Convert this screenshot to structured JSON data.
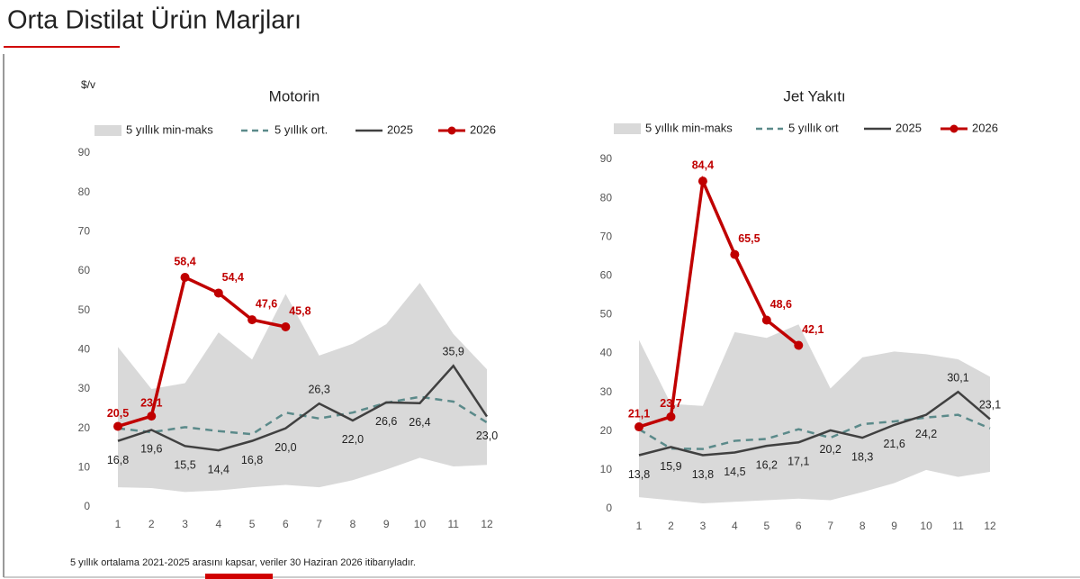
{
  "title": "Orta Distilat Ürün Marjları",
  "unit": "$/v",
  "footnote": "5 yıllık ortalama 2021-2025 arasını kapsar, veriler 30 Haziran 2026 itibarıyladır.",
  "chart_data": [
    {
      "type": "line",
      "title": "Motorin",
      "categories": [
        "1",
        "2",
        "3",
        "4",
        "5",
        "6",
        "7",
        "8",
        "9",
        "10",
        "11",
        "12"
      ],
      "ylim": [
        0,
        90
      ],
      "yticks": [
        0,
        10,
        20,
        30,
        40,
        50,
        60,
        70,
        80,
        90
      ],
      "grid": false,
      "series": [
        {
          "name": "5 yıllık min-maks",
          "kind": "band",
          "color": "#d9d9d9",
          "lower": [
            5,
            4.8,
            3.8,
            4.2,
            5,
            5.6,
            5,
            6.8,
            9.5,
            12.5,
            10.3,
            10.7
          ],
          "upper": [
            40.7,
            30,
            31.5,
            44.4,
            37.5,
            54.2,
            38.5,
            41.5,
            46.5,
            57,
            44,
            35
          ]
        },
        {
          "name": "5 yıllık ort.",
          "kind": "dashed",
          "color": "#5b8a8a",
          "values": [
            20,
            19,
            20.3,
            19.3,
            18.5,
            24,
            22.5,
            24,
            26.5,
            28,
            26.8,
            21.5
          ]
        },
        {
          "name": "2025",
          "kind": "line",
          "color": "#404040",
          "values": [
            16.8,
            19.6,
            15.5,
            14.4,
            16.8,
            20.0,
            26.3,
            22.0,
            26.6,
            26.4,
            35.9,
            23.0
          ],
          "value_labels": [
            "16,8",
            "19,6",
            "15,5",
            "14,4",
            "16,8",
            "20,0",
            "26,3",
            "22,0",
            "26,6",
            "26,4",
            "35,9",
            "23,0"
          ]
        },
        {
          "name": "2026",
          "kind": "marker",
          "color": "#c00000",
          "values": [
            20.5,
            23.1,
            58.4,
            54.4,
            47.6,
            45.8,
            null,
            null,
            null,
            null,
            null,
            null
          ],
          "value_labels": [
            "20,5",
            "23,1",
            "58,4",
            "54,4",
            "47,6",
            "45,8",
            null,
            null,
            null,
            null,
            null,
            null
          ]
        }
      ]
    },
    {
      "type": "line",
      "title": "Jet Yakıtı",
      "categories": [
        "1",
        "2",
        "3",
        "4",
        "5",
        "6",
        "7",
        "8",
        "9",
        "10",
        "11",
        "12"
      ],
      "ylim": [
        0,
        90
      ],
      "yticks": [
        0,
        10,
        20,
        30,
        40,
        50,
        60,
        70,
        80,
        90
      ],
      "grid": false,
      "series": [
        {
          "name": "5 yıllık min-maks",
          "kind": "band",
          "color": "#d9d9d9",
          "lower": [
            3,
            2.2,
            1.4,
            1.8,
            2.2,
            2.6,
            2.2,
            4.3,
            6.6,
            10,
            8.2,
            9.5
          ],
          "upper": [
            43.5,
            27,
            26.5,
            45.5,
            44,
            47.5,
            31,
            39,
            40.5,
            39.8,
            38.5,
            34
          ]
        },
        {
          "name": "5 yıllık ort",
          "kind": "dashed",
          "color": "#5b8a8a",
          "values": [
            20.5,
            15.5,
            15.4,
            17.5,
            18,
            20.5,
            18.3,
            21.8,
            22.5,
            23.5,
            24.2,
            20.7
          ]
        },
        {
          "name": "2025",
          "kind": "line",
          "color": "#404040",
          "values": [
            13.8,
            15.9,
            13.8,
            14.5,
            16.2,
            17.1,
            20.2,
            18.3,
            21.6,
            24.2,
            30.1,
            23.1
          ],
          "value_labels": [
            "13,8",
            "15,9",
            "13,8",
            "14,5",
            "16,2",
            "17,1",
            "20,2",
            "18,3",
            "21,6",
            "24,2",
            "30,1",
            "23,1"
          ]
        },
        {
          "name": "2026",
          "kind": "marker",
          "color": "#c00000",
          "values": [
            21.1,
            23.7,
            84.4,
            65.5,
            48.6,
            42.1,
            null,
            null,
            null,
            null,
            null,
            null
          ],
          "value_labels": [
            "21,1",
            "23,7",
            "84,4",
            "65,5",
            "48,6",
            "42,1",
            null,
            null,
            null,
            null,
            null,
            null
          ]
        }
      ]
    }
  ]
}
